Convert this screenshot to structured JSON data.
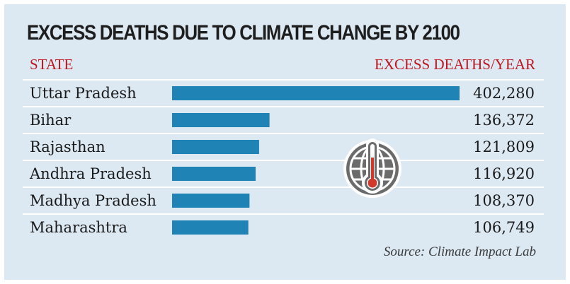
{
  "title": "EXCESS DEATHS DUE TO CLIMATE CHANGE BY 2100",
  "column_headers": {
    "left": "STATE",
    "right": "EXCESS DEATHS/YEAR"
  },
  "source": "Source: Climate Impact Lab",
  "icon": "globe-thermometer-icon",
  "colors": {
    "bar": "#1f84b5",
    "header": "#c0141c",
    "background": "#dce8f2",
    "divider": "#ffffff"
  },
  "chart_data": {
    "type": "bar",
    "orientation": "horizontal",
    "title": "EXCESS DEATHS DUE TO CLIMATE CHANGE BY 2100",
    "xlabel": "EXCESS DEATHS/YEAR",
    "ylabel": "STATE",
    "categories": [
      "Uttar Pradesh",
      "Bihar",
      "Rajasthan",
      "Andhra Pradesh",
      "Madhya Pradesh",
      "Maharashtra"
    ],
    "values": [
      402280,
      136372,
      121809,
      116920,
      108370,
      106749
    ],
    "value_labels": [
      "402,280",
      "136,372",
      "121,809",
      "116,920",
      "108,370",
      "106,749"
    ],
    "xlim": [
      0,
      402280
    ],
    "grid": false,
    "legend": "none"
  }
}
